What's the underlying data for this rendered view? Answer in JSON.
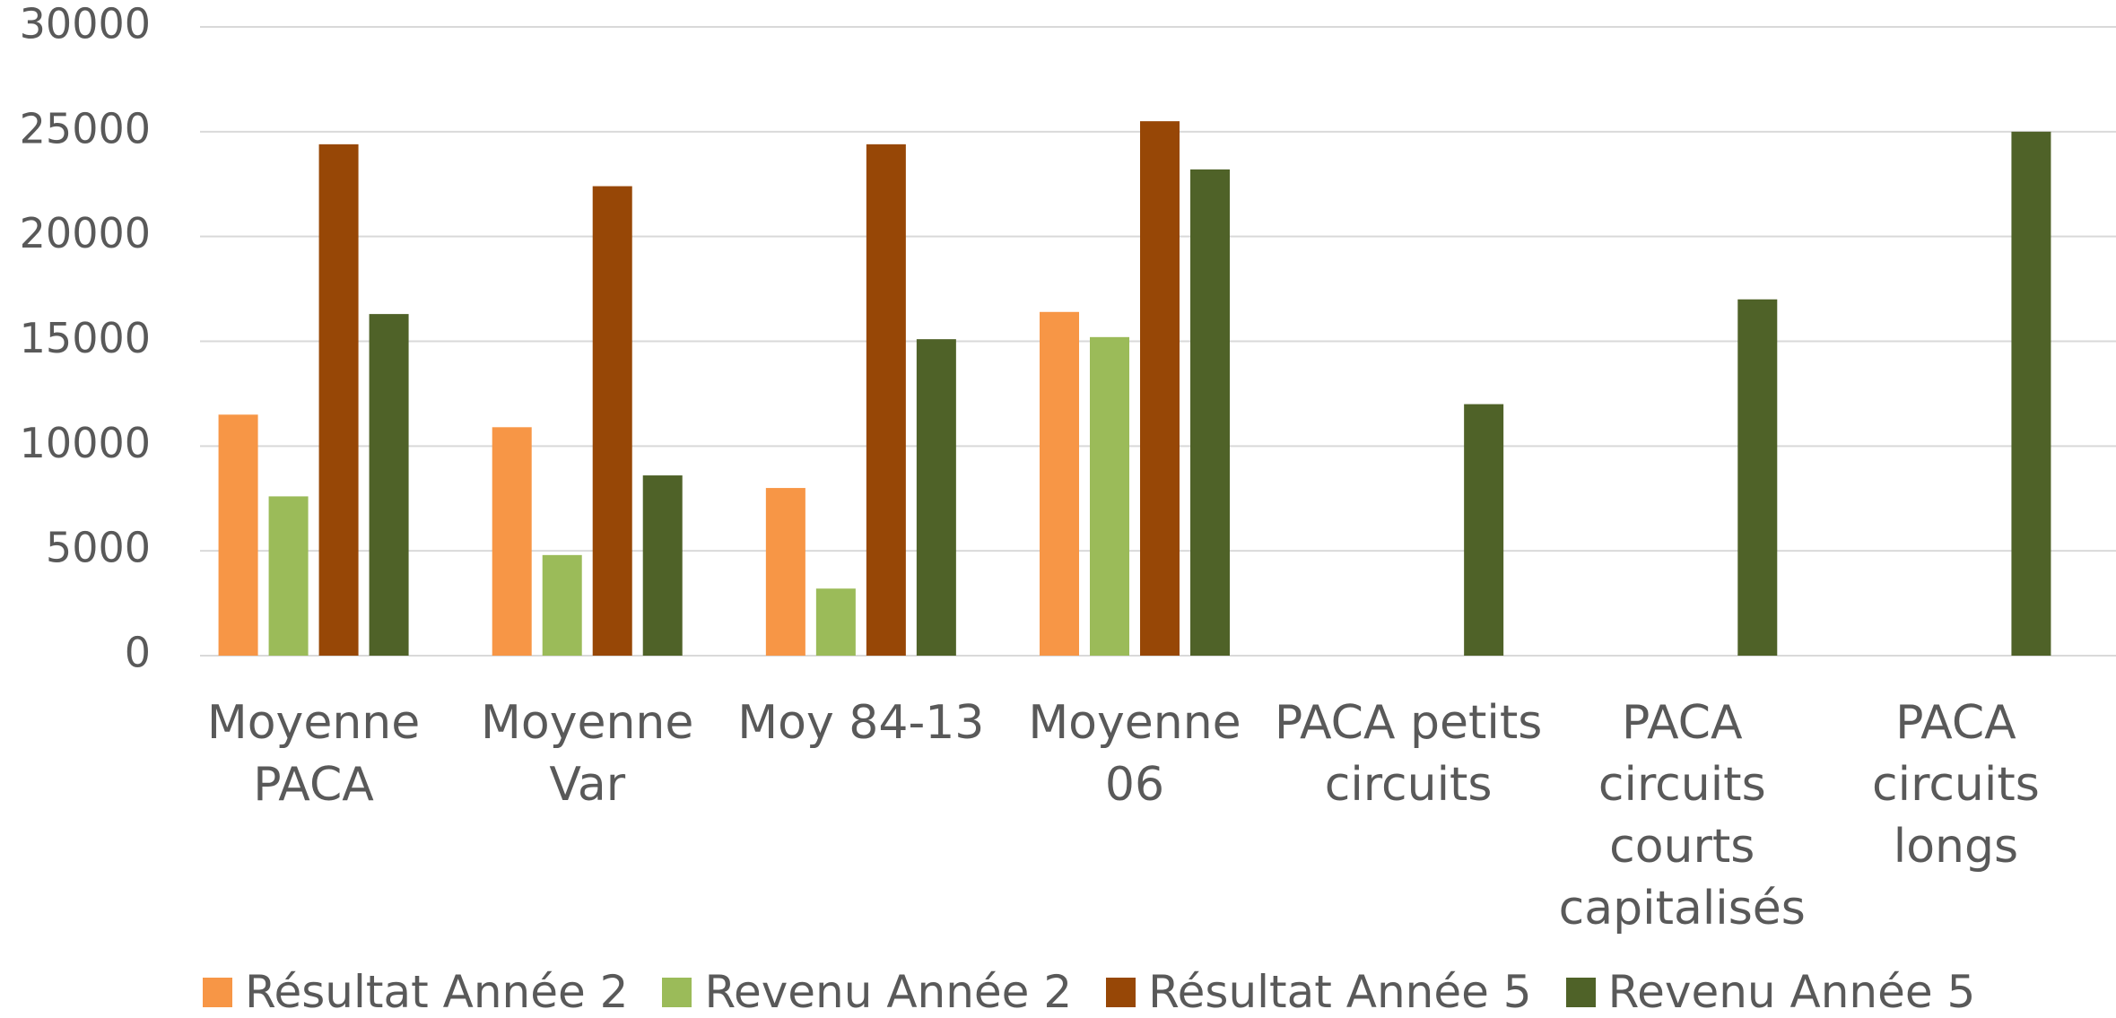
{
  "chart_data": {
    "type": "bar",
    "categories": [
      "Moyenne PACA",
      "Moyenne Var",
      "Moy 84-13",
      "Moyenne 06",
      "PACA petits circuits",
      "PACA circuits courts capitalisés",
      "PACA circuits longs"
    ],
    "series": [
      {
        "name": "Résultat Année 2",
        "color": "#f79646",
        "values": [
          11500,
          10900,
          8000,
          16400,
          null,
          null,
          null
        ]
      },
      {
        "name": "Revenu Année 2",
        "color": "#9bbb59",
        "values": [
          7600,
          4800,
          3200,
          15200,
          null,
          null,
          null
        ]
      },
      {
        "name": "Résultat Année 5",
        "color": "#974706",
        "values": [
          24400,
          22400,
          24400,
          25500,
          null,
          null,
          null
        ]
      },
      {
        "name": "Revenu Année 5",
        "color": "#4f6228",
        "values": [
          16300,
          8600,
          15100,
          23200,
          12000,
          17000,
          25000
        ]
      }
    ],
    "ylim": [
      0,
      30000
    ],
    "yticks": [
      0,
      5000,
      10000,
      15000,
      20000,
      25000,
      30000
    ],
    "grid": true,
    "legend": "bottom"
  }
}
